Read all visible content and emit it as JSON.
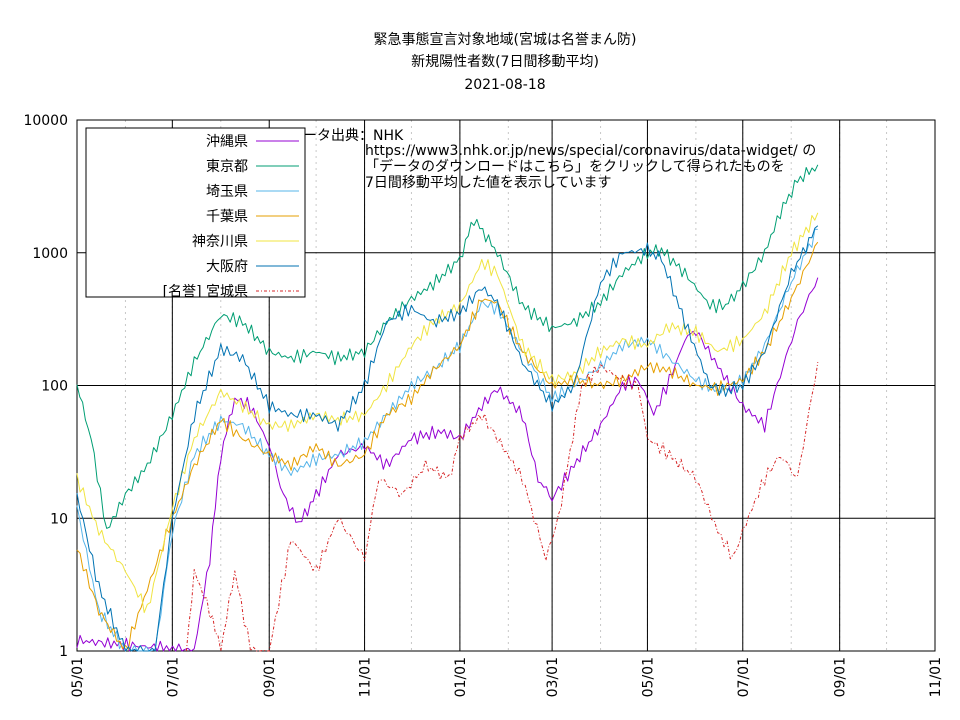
{
  "chart_data": {
    "type": "line",
    "title_lines": [
      "緊急事態宣言対象地域(宮城は名誉まん防)",
      "新規陽性者数(7日間移動平均)",
      "2021-08-18"
    ],
    "xlabel": "",
    "ylabel": "",
    "y_scale": "log",
    "ylim": [
      1,
      10000
    ],
    "y_ticks": [
      1,
      10,
      100,
      1000,
      10000
    ],
    "y_tick_labels": [
      "1",
      "10",
      "100",
      "1000",
      "10000"
    ],
    "xlim": [
      "2020-05-01",
      "2021-11-01"
    ],
    "x_ticks": [
      "2020-05-01",
      "2020-07-01",
      "2020-09-01",
      "2020-11-01",
      "2021-01-01",
      "2021-03-01",
      "2021-05-01",
      "2021-07-01",
      "2021-09-01",
      "2021-11-01"
    ],
    "x_tick_labels": [
      "05/01",
      "07/01",
      "09/01",
      "11/01",
      "01/01",
      "03/01",
      "05/01",
      "07/01",
      "09/01",
      "11/01"
    ],
    "grid": true,
    "legend_position": "top-left",
    "annotation_lines": [
      "データ出典：NHK",
      "https://www3.nhk.or.jp/news/special/coronavirus/data-widget/ の",
      "「データのダウンロードはこちら」をクリックして得られたものを",
      "7日間移動平均した値を表示しています"
    ],
    "series": [
      {
        "name": "沖縄県",
        "color": "#9400d3",
        "dash": "solid",
        "points": [
          [
            "2020-05-01",
            1.2
          ],
          [
            "2020-07-15",
            1
          ],
          [
            "2020-07-25",
            5
          ],
          [
            "2020-08-01",
            30
          ],
          [
            "2020-08-10",
            80
          ],
          [
            "2020-08-20",
            70
          ],
          [
            "2020-09-01",
            35
          ],
          [
            "2020-09-10",
            15
          ],
          [
            "2020-09-20",
            9
          ],
          [
            "2020-10-01",
            15
          ],
          [
            "2020-10-15",
            30
          ],
          [
            "2020-11-01",
            35
          ],
          [
            "2020-11-15",
            25
          ],
          [
            "2020-12-01",
            40
          ],
          [
            "2020-12-20",
            45
          ],
          [
            "2021-01-01",
            40
          ],
          [
            "2021-01-15",
            70
          ],
          [
            "2021-01-25",
            95
          ],
          [
            "2021-02-10",
            60
          ],
          [
            "2021-02-20",
            20
          ],
          [
            "2021-03-01",
            14
          ],
          [
            "2021-03-15",
            25
          ],
          [
            "2021-04-01",
            50
          ],
          [
            "2021-04-15",
            100
          ],
          [
            "2021-04-25",
            110
          ],
          [
            "2021-05-01",
            80
          ],
          [
            "2021-05-05",
            60
          ],
          [
            "2021-05-15",
            110
          ],
          [
            "2021-05-25",
            220
          ],
          [
            "2021-06-01",
            260
          ],
          [
            "2021-06-15",
            140
          ],
          [
            "2021-07-01",
            70
          ],
          [
            "2021-07-15",
            50
          ],
          [
            "2021-07-25",
            120
          ],
          [
            "2021-08-05",
            300
          ],
          [
            "2021-08-18",
            650
          ]
        ]
      },
      {
        "name": "東京都",
        "color": "#009e73",
        "dash": "solid",
        "points": [
          [
            "2020-05-01",
            100
          ],
          [
            "2020-05-10",
            40
          ],
          [
            "2020-05-20",
            8
          ],
          [
            "2020-06-01",
            15
          ],
          [
            "2020-06-15",
            25
          ],
          [
            "2020-07-01",
            60
          ],
          [
            "2020-07-15",
            150
          ],
          [
            "2020-08-01",
            340
          ],
          [
            "2020-08-15",
            300
          ],
          [
            "2020-09-01",
            180
          ],
          [
            "2020-09-15",
            160
          ],
          [
            "2020-10-01",
            180
          ],
          [
            "2020-10-15",
            160
          ],
          [
            "2020-11-01",
            180
          ],
          [
            "2020-11-15",
            300
          ],
          [
            "2020-12-01",
            450
          ],
          [
            "2020-12-15",
            580
          ],
          [
            "2021-01-01",
            900
          ],
          [
            "2021-01-10",
            1800
          ],
          [
            "2021-01-25",
            1000
          ],
          [
            "2021-02-10",
            400
          ],
          [
            "2021-03-01",
            270
          ],
          [
            "2021-03-15",
            300
          ],
          [
            "2021-04-01",
            420
          ],
          [
            "2021-04-15",
            700
          ],
          [
            "2021-05-01",
            1000
          ],
          [
            "2021-05-10",
            1050
          ],
          [
            "2021-05-25",
            700
          ],
          [
            "2021-06-10",
            400
          ],
          [
            "2021-06-20",
            400
          ],
          [
            "2021-07-01",
            560
          ],
          [
            "2021-07-15",
            1000
          ],
          [
            "2021-07-25",
            2000
          ],
          [
            "2021-08-05",
            3500
          ],
          [
            "2021-08-18",
            4600
          ]
        ]
      },
      {
        "name": "埼玉県",
        "color": "#56b4e9",
        "dash": "solid",
        "points": [
          [
            "2020-05-01",
            12
          ],
          [
            "2020-05-15",
            2
          ],
          [
            "2020-06-01",
            1
          ],
          [
            "2020-06-20",
            1
          ],
          [
            "2020-07-01",
            8
          ],
          [
            "2020-07-15",
            30
          ],
          [
            "2020-08-01",
            55
          ],
          [
            "2020-08-15",
            50
          ],
          [
            "2020-09-01",
            30
          ],
          [
            "2020-09-15",
            22
          ],
          [
            "2020-10-01",
            28
          ],
          [
            "2020-10-15",
            30
          ],
          [
            "2020-11-01",
            38
          ],
          [
            "2020-11-15",
            60
          ],
          [
            "2020-12-01",
            100
          ],
          [
            "2020-12-15",
            130
          ],
          [
            "2021-01-01",
            200
          ],
          [
            "2021-01-15",
            420
          ],
          [
            "2021-01-25",
            380
          ],
          [
            "2021-02-10",
            180
          ],
          [
            "2021-03-01",
            80
          ],
          [
            "2021-03-15",
            100
          ],
          [
            "2021-04-01",
            140
          ],
          [
            "2021-04-15",
            200
          ],
          [
            "2021-05-01",
            220
          ],
          [
            "2021-05-15",
            160
          ],
          [
            "2021-06-01",
            110
          ],
          [
            "2021-06-15",
            90
          ],
          [
            "2021-07-01",
            110
          ],
          [
            "2021-07-15",
            200
          ],
          [
            "2021-08-01",
            600
          ],
          [
            "2021-08-18",
            1500
          ]
        ]
      },
      {
        "name": "千葉県",
        "color": "#e69f00",
        "dash": "solid",
        "points": [
          [
            "2020-05-01",
            6
          ],
          [
            "2020-05-15",
            2
          ],
          [
            "2020-06-01",
            1
          ],
          [
            "2020-07-01",
            10
          ],
          [
            "2020-07-15",
            25
          ],
          [
            "2020-08-01",
            55
          ],
          [
            "2020-08-15",
            40
          ],
          [
            "2020-09-01",
            30
          ],
          [
            "2020-09-15",
            25
          ],
          [
            "2020-10-01",
            35
          ],
          [
            "2020-10-15",
            25
          ],
          [
            "2020-11-01",
            30
          ],
          [
            "2020-11-15",
            60
          ],
          [
            "2020-12-01",
            80
          ],
          [
            "2020-12-15",
            130
          ],
          [
            "2021-01-01",
            200
          ],
          [
            "2021-01-15",
            450
          ],
          [
            "2021-01-25",
            420
          ],
          [
            "2021-02-10",
            180
          ],
          [
            "2021-03-01",
            100
          ],
          [
            "2021-03-15",
            110
          ],
          [
            "2021-04-01",
            100
          ],
          [
            "2021-04-15",
            110
          ],
          [
            "2021-05-01",
            140
          ],
          [
            "2021-05-15",
            130
          ],
          [
            "2021-06-01",
            100
          ],
          [
            "2021-06-15",
            95
          ],
          [
            "2021-07-01",
            110
          ],
          [
            "2021-07-15",
            180
          ],
          [
            "2021-08-01",
            450
          ],
          [
            "2021-08-18",
            1200
          ]
        ]
      },
      {
        "name": "神奈川県",
        "color": "#f0e442",
        "dash": "solid",
        "points": [
          [
            "2020-05-01",
            20
          ],
          [
            "2020-05-15",
            8
          ],
          [
            "2020-06-01",
            4
          ],
          [
            "2020-06-15",
            2
          ],
          [
            "2020-07-01",
            12
          ],
          [
            "2020-07-15",
            40
          ],
          [
            "2020-08-01",
            90
          ],
          [
            "2020-08-15",
            70
          ],
          [
            "2020-09-01",
            50
          ],
          [
            "2020-09-15",
            50
          ],
          [
            "2020-10-01",
            60
          ],
          [
            "2020-10-15",
            55
          ],
          [
            "2020-11-01",
            60
          ],
          [
            "2020-11-15",
            100
          ],
          [
            "2020-12-01",
            200
          ],
          [
            "2020-12-15",
            300
          ],
          [
            "2021-01-01",
            400
          ],
          [
            "2021-01-15",
            850
          ],
          [
            "2021-01-25",
            700
          ],
          [
            "2021-02-10",
            200
          ],
          [
            "2021-03-01",
            110
          ],
          [
            "2021-03-15",
            120
          ],
          [
            "2021-04-01",
            180
          ],
          [
            "2021-04-15",
            220
          ],
          [
            "2021-05-01",
            200
          ],
          [
            "2021-05-15",
            280
          ],
          [
            "2021-06-01",
            250
          ],
          [
            "2021-06-15",
            180
          ],
          [
            "2021-07-01",
            220
          ],
          [
            "2021-07-15",
            350
          ],
          [
            "2021-08-01",
            1000
          ],
          [
            "2021-08-18",
            2000
          ]
        ]
      },
      {
        "name": "大阪府",
        "color": "#0072b2",
        "dash": "solid",
        "points": [
          [
            "2020-05-01",
            15
          ],
          [
            "2020-05-15",
            3
          ],
          [
            "2020-06-01",
            1
          ],
          [
            "2020-06-20",
            1
          ],
          [
            "2020-07-01",
            10
          ],
          [
            "2020-07-15",
            60
          ],
          [
            "2020-08-01",
            190
          ],
          [
            "2020-08-15",
            160
          ],
          [
            "2020-09-01",
            70
          ],
          [
            "2020-09-15",
            60
          ],
          [
            "2020-10-01",
            60
          ],
          [
            "2020-10-15",
            50
          ],
          [
            "2020-11-01",
            100
          ],
          [
            "2020-11-15",
            300
          ],
          [
            "2020-12-01",
            380
          ],
          [
            "2020-12-15",
            300
          ],
          [
            "2021-01-01",
            350
          ],
          [
            "2021-01-15",
            550
          ],
          [
            "2021-01-25",
            420
          ],
          [
            "2021-02-10",
            150
          ],
          [
            "2021-03-01",
            70
          ],
          [
            "2021-03-15",
            100
          ],
          [
            "2021-04-01",
            600
          ],
          [
            "2021-04-15",
            1000
          ],
          [
            "2021-05-01",
            1050
          ],
          [
            "2021-05-10",
            900
          ],
          [
            "2021-05-25",
            300
          ],
          [
            "2021-06-10",
            100
          ],
          [
            "2021-06-20",
            90
          ],
          [
            "2021-07-01",
            100
          ],
          [
            "2021-07-15",
            180
          ],
          [
            "2021-08-01",
            700
          ],
          [
            "2021-08-18",
            1600
          ]
        ]
      },
      {
        "name": "[名誉] 宮城県",
        "color": "#d62728",
        "dash": "3 2 1 2",
        "points": [
          [
            "2020-07-10",
            1
          ],
          [
            "2020-07-15",
            4
          ],
          [
            "2020-07-25",
            2
          ],
          [
            "2020-08-01",
            1
          ],
          [
            "2020-08-10",
            4
          ],
          [
            "2020-08-20",
            1
          ],
          [
            "2020-09-01",
            1
          ],
          [
            "2020-09-15",
            7
          ],
          [
            "2020-10-01",
            4
          ],
          [
            "2020-10-15",
            10
          ],
          [
            "2020-11-01",
            5
          ],
          [
            "2020-11-10",
            20
          ],
          [
            "2020-11-25",
            15
          ],
          [
            "2020-12-10",
            25
          ],
          [
            "2020-12-25",
            20
          ],
          [
            "2021-01-01",
            40
          ],
          [
            "2021-01-15",
            60
          ],
          [
            "2021-01-25",
            40
          ],
          [
            "2021-02-10",
            20
          ],
          [
            "2021-02-25",
            5
          ],
          [
            "2021-03-05",
            10
          ],
          [
            "2021-03-20",
            100
          ],
          [
            "2021-04-01",
            140
          ],
          [
            "2021-04-15",
            110
          ],
          [
            "2021-04-25",
            100
          ],
          [
            "2021-05-01",
            40
          ],
          [
            "2021-05-15",
            30
          ],
          [
            "2021-06-01",
            20
          ],
          [
            "2021-06-15",
            8
          ],
          [
            "2021-06-25",
            5
          ],
          [
            "2021-07-01",
            8
          ],
          [
            "2021-07-15",
            20
          ],
          [
            "2021-07-25",
            30
          ],
          [
            "2021-08-05",
            20
          ],
          [
            "2021-08-18",
            150
          ]
        ]
      }
    ]
  }
}
